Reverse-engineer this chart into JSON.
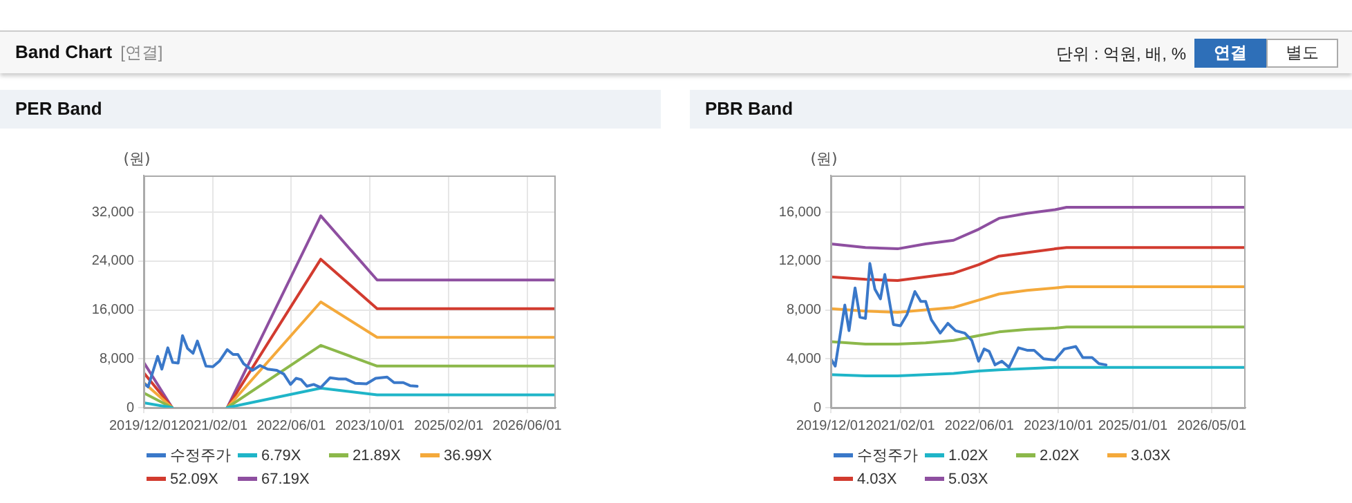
{
  "chart_data": [
    {
      "type": "other",
      "title": "Band Chart",
      "subtitle": "[연결]",
      "annotations": [
        "단위 : 억원, 배, %",
        "연결",
        "별도"
      ]
    },
    {
      "type": "line",
      "title": "PER Band",
      "ylabel": "(원)",
      "xlim": [
        "2019-12-01",
        "2026-11-25"
      ],
      "ylim": [
        0,
        38000
      ],
      "xticks": [
        {
          "value": "2019-12-01",
          "label": "2019/12/01"
        },
        {
          "value": "2021-02-01",
          "label": "2021/02/01"
        },
        {
          "value": "2022-06-01",
          "label": "2022/06/01"
        },
        {
          "value": "2023-10-01",
          "label": "2023/10/01"
        },
        {
          "value": "2025-02-01",
          "label": "2025/02/01"
        },
        {
          "value": "2026-06-01",
          "label": "2026/06/01"
        }
      ],
      "yticks": [
        0,
        {
          "value": 8000,
          "label": "8,000"
        },
        {
          "value": 16000,
          "label": "16,000"
        },
        {
          "value": 24000,
          "label": "24,000"
        },
        {
          "value": 32000,
          "label": "32,000"
        }
      ],
      "grid": true,
      "legend": "bottom",
      "marker": "none",
      "line_style": "solid",
      "series": [
        {
          "name": "수정주가",
          "color": "#3a78c9",
          "x": [
            "2019-12-01",
            "2019-12-28",
            "2020-02-25",
            "2020-03-22",
            "2020-04-28",
            "2020-05-28",
            "2020-07-01",
            "2020-07-28",
            "2020-08-28",
            "2020-10-01",
            "2020-10-28",
            "2020-12-20",
            "2021-02-01",
            "2021-03-13",
            "2021-05-01",
            "2021-06-06",
            "2021-07-06",
            "2021-08-10",
            "2021-10-04",
            "2021-11-20",
            "2022-01-06",
            "2022-03-04",
            "2022-04-16",
            "2022-05-28",
            "2022-07-01",
            "2022-08-01",
            "2022-09-06",
            "2022-10-18",
            "2022-12-01",
            "2023-01-28",
            "2023-03-22",
            "2023-05-04",
            "2023-07-01",
            "2023-09-10",
            "2023-11-06",
            "2024-01-16",
            "2024-02-28",
            "2024-04-25",
            "2024-06-06",
            "2024-07-20"
          ],
          "values": [
            4000,
            3400,
            8400,
            6300,
            9800,
            7400,
            7300,
            11800,
            9700,
            8900,
            10900,
            6800,
            6700,
            7600,
            9500,
            8700,
            8700,
            7200,
            6100,
            6900,
            6300,
            6100,
            5500,
            3800,
            4800,
            4600,
            3500,
            3800,
            3300,
            4900,
            4700,
            4700,
            4000,
            3900,
            4800,
            5000,
            4100,
            4100,
            3600,
            3500
          ]
        },
        {
          "name": "6.79X",
          "color": "#1fb5c8",
          "x": [
            "2019-12-01",
            "2020-05-25",
            "2020-12-01",
            "2021-05-01",
            "2022-12-01",
            "2023-11-15",
            "2026-11-25"
          ],
          "values": [
            800,
            0,
            null,
            0,
            3200,
            2100,
            2100
          ]
        },
        {
          "name": "21.89X",
          "color": "#8cb84a",
          "x": [
            "2019-12-01",
            "2020-05-25",
            "2020-12-01",
            "2021-05-01",
            "2022-12-01",
            "2023-11-15",
            "2026-11-25"
          ],
          "values": [
            2400,
            0,
            null,
            0,
            10200,
            6800,
            6800
          ]
        },
        {
          "name": "36.99X",
          "color": "#f4a93b",
          "x": [
            "2019-12-01",
            "2020-05-25",
            "2020-12-01",
            "2021-05-01",
            "2022-12-01",
            "2023-11-15",
            "2026-11-25"
          ],
          "values": [
            4100,
            0,
            null,
            0,
            17300,
            11500,
            11500
          ]
        },
        {
          "name": "52.09X",
          "color": "#d23b2f",
          "x": [
            "2019-12-01",
            "2020-05-25",
            "2020-12-01",
            "2021-05-01",
            "2022-12-01",
            "2023-11-15",
            "2026-11-25"
          ],
          "values": [
            5700,
            0,
            null,
            0,
            24300,
            16200,
            16200
          ]
        },
        {
          "name": "67.19X",
          "color": "#8e4fa0",
          "x": [
            "2019-12-01",
            "2020-05-25",
            "2020-12-01",
            "2021-05-01",
            "2022-12-01",
            "2023-11-15",
            "2026-11-25"
          ],
          "values": [
            7400,
            0,
            null,
            0,
            31400,
            20900,
            20900
          ]
        }
      ]
    },
    {
      "type": "line",
      "title": "PBR Band",
      "ylabel": "(원)",
      "xlim": [
        "2019-12-01",
        "2026-11-25"
      ],
      "ylim": [
        0,
        19000
      ],
      "xticks": [
        {
          "value": "2019-12-01",
          "label": "2019/12/01"
        },
        {
          "value": "2021-02-01",
          "label": "2021/02/01"
        },
        {
          "value": "2022-06-01",
          "label": "2022/06/01"
        },
        {
          "value": "2023-10-01",
          "label": "2023/10/01"
        },
        {
          "value": "2025-01-01",
          "label": "2025/01/01"
        },
        {
          "value": "2026-05-01",
          "label": "2026/05/01"
        }
      ],
      "yticks": [
        0,
        {
          "value": 4000,
          "label": "4,000"
        },
        {
          "value": 8000,
          "label": "8,000"
        },
        {
          "value": 12000,
          "label": "12,000"
        },
        {
          "value": 16000,
          "label": "16,000"
        }
      ],
      "grid": true,
      "legend": "bottom",
      "marker": "none",
      "line_style": "solid",
      "series": [
        {
          "name": "수정주가",
          "color": "#3a78c9",
          "x": [
            "2019-12-01",
            "2019-12-28",
            "2020-02-25",
            "2020-03-22",
            "2020-04-28",
            "2020-05-28",
            "2020-07-01",
            "2020-07-28",
            "2020-08-28",
            "2020-10-01",
            "2020-10-28",
            "2020-12-20",
            "2021-02-01",
            "2021-03-13",
            "2021-05-01",
            "2021-06-06",
            "2021-07-06",
            "2021-08-10",
            "2021-10-04",
            "2021-11-20",
            "2022-01-06",
            "2022-03-04",
            "2022-04-16",
            "2022-05-28",
            "2022-07-01",
            "2022-08-01",
            "2022-09-06",
            "2022-10-18",
            "2022-12-01",
            "2023-01-28",
            "2023-03-22",
            "2023-05-04",
            "2023-07-01",
            "2023-09-10",
            "2023-11-06",
            "2024-01-16",
            "2024-02-28",
            "2024-04-25",
            "2024-06-06",
            "2024-07-20"
          ],
          "values": [
            4000,
            3400,
            8400,
            6300,
            9800,
            7400,
            7300,
            11800,
            9700,
            8900,
            10900,
            6800,
            6700,
            7600,
            9500,
            8700,
            8700,
            7200,
            6100,
            6900,
            6300,
            6100,
            5500,
            3800,
            4800,
            4600,
            3500,
            3800,
            3300,
            4900,
            4700,
            4700,
            4000,
            3900,
            4800,
            5000,
            4100,
            4100,
            3600,
            3500
          ]
        },
        {
          "name": "1.02X",
          "color": "#1fb5c8",
          "x": [
            "2019-12-01",
            "2020-07-01",
            "2021-01-15",
            "2021-07-06",
            "2021-12-25",
            "2022-05-28",
            "2022-10-01",
            "2023-03-22",
            "2023-09-10",
            "2023-11-20",
            "2026-11-25"
          ],
          "values": [
            2700,
            2600,
            2600,
            2700,
            2800,
            3000,
            3100,
            3200,
            3300,
            3300,
            3300
          ]
        },
        {
          "name": "2.02X",
          "color": "#8cb84a",
          "x": [
            "2019-12-01",
            "2020-07-01",
            "2021-01-15",
            "2021-07-06",
            "2021-12-25",
            "2022-05-28",
            "2022-10-01",
            "2023-03-22",
            "2023-09-10",
            "2023-11-20",
            "2026-11-25"
          ],
          "values": [
            5400,
            5200,
            5200,
            5300,
            5500,
            5900,
            6200,
            6400,
            6500,
            6600,
            6600
          ]
        },
        {
          "name": "3.03X",
          "color": "#f4a93b",
          "x": [
            "2019-12-01",
            "2020-07-01",
            "2021-01-15",
            "2021-07-06",
            "2021-12-25",
            "2022-05-28",
            "2022-10-01",
            "2023-03-22",
            "2023-09-10",
            "2023-11-20",
            "2026-11-25"
          ],
          "values": [
            8100,
            7900,
            7800,
            8000,
            8200,
            8800,
            9300,
            9600,
            9800,
            9900,
            9900
          ]
        },
        {
          "name": "4.03X",
          "color": "#d23b2f",
          "x": [
            "2019-12-01",
            "2020-07-01",
            "2021-01-15",
            "2021-07-06",
            "2021-12-25",
            "2022-05-28",
            "2022-10-01",
            "2023-03-22",
            "2023-09-10",
            "2023-11-20",
            "2026-11-25"
          ],
          "values": [
            10700,
            10500,
            10400,
            10700,
            11000,
            11700,
            12400,
            12700,
            13000,
            13100,
            13100
          ]
        },
        {
          "name": "5.03X",
          "color": "#8e4fa0",
          "x": [
            "2019-12-01",
            "2020-07-01",
            "2021-01-15",
            "2021-07-06",
            "2021-12-25",
            "2022-05-28",
            "2022-10-01",
            "2023-03-22",
            "2023-09-10",
            "2023-11-20",
            "2026-11-25"
          ],
          "values": [
            13400,
            13100,
            13000,
            13400,
            13700,
            14600,
            15500,
            15900,
            16200,
            16400,
            16400
          ]
        }
      ]
    }
  ]
}
